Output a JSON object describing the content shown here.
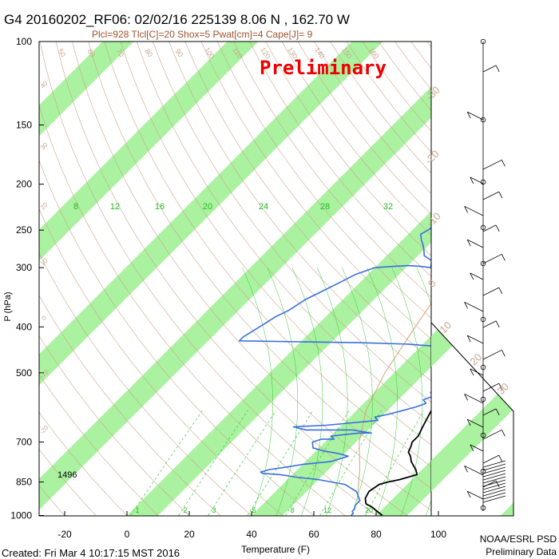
{
  "header": {
    "title": "G4 20160202_RF06: 02/02/16 225139   8.06 N , 162.70 W",
    "subtitle": "Plcl=928 Tlcl[C]=20 Shox=5 Pwat[cm]=4 Cape[J]= 9",
    "watermark": "Preliminary"
  },
  "footer": {
    "created": "Created: Fri Mar  4 10:17:15 MST 2016",
    "credit_line1": "NOAA/ESRL PSD",
    "credit_line2": "Preliminary Data"
  },
  "colors": {
    "band": "#aaf2a0",
    "temperature": "#000000",
    "dewpoint": "#3a6fdf",
    "dry_adiabat": "#c8a58c",
    "moist_adiabat": "#33cc33",
    "parcel": "#d6a27a",
    "watermark": "#ee0000",
    "subtitle": "#a0522d"
  },
  "chart_data": {
    "type": "line",
    "title": "G4 20160202_RF06: 02/02/16 225139   8.06 N , 162.70 W",
    "xlabel": "Temperature (F)",
    "ylabel": "P (hPa)",
    "x_ticks": [
      -20,
      0,
      20,
      40,
      60,
      80,
      100
    ],
    "y_ticks": [
      100,
      150,
      200,
      250,
      300,
      400,
      500,
      700,
      850,
      1000
    ],
    "xlim": [
      -28,
      122
    ],
    "ylim": [
      1050,
      100
    ],
    "y_scale": "log",
    "annotation": "1496",
    "mixing_ratio_labels_top": [
      "8",
      "12",
      "16",
      "20",
      "24",
      "28",
      "32"
    ],
    "mixing_ratio_labels_bottom": [
      "1",
      "2",
      "3",
      "5",
      "8",
      "12",
      "20"
    ],
    "dry_adiabat_labels": [
      "50",
      "60",
      "70",
      "80",
      "90",
      "100",
      "110",
      "120",
      "130",
      "140",
      "150",
      "160"
    ],
    "right_axis_labels": [
      "-30",
      "-20",
      "-10",
      "0",
      "10",
      "20",
      "30"
    ],
    "left_isotherm_labels": [
      "40",
      "30",
      "20",
      "10",
      "0",
      "-10",
      "-20"
    ],
    "series": [
      {
        "name": "Temperature",
        "points": [
          [
            82,
            1000
          ],
          [
            79,
            980
          ],
          [
            76,
            960
          ],
          [
            73,
            945
          ],
          [
            71,
            920
          ],
          [
            70,
            890
          ],
          [
            71,
            860
          ],
          [
            73,
            850
          ],
          [
            76,
            840
          ],
          [
            80,
            820
          ],
          [
            78,
            800
          ],
          [
            76,
            785
          ],
          [
            74,
            770
          ],
          [
            72,
            750
          ],
          [
            70,
            735
          ],
          [
            69,
            715
          ],
          [
            68,
            700
          ],
          [
            68,
            680
          ],
          [
            67,
            660
          ],
          [
            66,
            640
          ],
          [
            65,
            620
          ],
          [
            64,
            600
          ],
          [
            63,
            580
          ],
          [
            62,
            560
          ],
          [
            61,
            540
          ],
          [
            60,
            520
          ],
          [
            60,
            500
          ],
          [
            59,
            480
          ],
          [
            58,
            470
          ],
          [
            56,
            455
          ],
          [
            54,
            440
          ],
          [
            52,
            430
          ],
          [
            52,
            420
          ],
          [
            52,
            400
          ],
          [
            51,
            380
          ],
          [
            50,
            360
          ],
          [
            49,
            345
          ],
          [
            48,
            340
          ],
          [
            46,
            320
          ],
          [
            44,
            300
          ],
          [
            41,
            280
          ],
          [
            38,
            262
          ],
          [
            35,
            250
          ],
          [
            31,
            235
          ],
          [
            27,
            222
          ],
          [
            23,
            210
          ],
          [
            21,
            200
          ],
          [
            18,
            190
          ]
        ]
      },
      {
        "name": "Dewpoint",
        "points": [
          [
            72,
            1000
          ],
          [
            72,
            990
          ],
          [
            71,
            980
          ],
          [
            71,
            970
          ],
          [
            70,
            950
          ],
          [
            70,
            930
          ],
          [
            68,
            910
          ],
          [
            67,
            900
          ],
          [
            66,
            890
          ],
          [
            64,
            880
          ],
          [
            62,
            870
          ],
          [
            60,
            860
          ],
          [
            55,
            850
          ],
          [
            50,
            840
          ],
          [
            42,
            830
          ],
          [
            36,
            820
          ],
          [
            30,
            815
          ],
          [
            29,
            810
          ],
          [
            31,
            800
          ],
          [
            36,
            790
          ],
          [
            40,
            780
          ],
          [
            48,
            770
          ],
          [
            50,
            760
          ],
          [
            52,
            750
          ],
          [
            48,
            740
          ],
          [
            42,
            730
          ],
          [
            38,
            720
          ],
          [
            36,
            700
          ],
          [
            38,
            690
          ],
          [
            42,
            690
          ],
          [
            40,
            680
          ],
          [
            48,
            670
          ],
          [
            52,
            670
          ],
          [
            45,
            660
          ],
          [
            30,
            660
          ],
          [
            25,
            650
          ],
          [
            35,
            645
          ],
          [
            40,
            640
          ],
          [
            50,
            630
          ],
          [
            48,
            620
          ],
          [
            52,
            610
          ],
          [
            55,
            600
          ],
          [
            58,
            590
          ],
          [
            60,
            580
          ],
          [
            58,
            570
          ],
          [
            60,
            560
          ],
          [
            58,
            550
          ],
          [
            60,
            540
          ],
          [
            58,
            530
          ],
          [
            56,
            520
          ],
          [
            57,
            510
          ],
          [
            58,
            500
          ],
          [
            56,
            490
          ],
          [
            52,
            480
          ],
          [
            50,
            470
          ],
          [
            49,
            460
          ],
          [
            48,
            450
          ],
          [
            46,
            440
          ],
          [
            35,
            435
          ],
          [
            20,
            432
          ],
          [
            0,
            430
          ],
          [
            -20,
            428
          ],
          [
            -20,
            420
          ],
          [
            -18,
            400
          ],
          [
            -16,
            380
          ],
          [
            -14,
            370
          ],
          [
            -12,
            350
          ],
          [
            -10,
            340
          ],
          [
            -6,
            320
          ],
          [
            -4,
            310
          ],
          [
            -2,
            305
          ],
          [
            0,
            300
          ],
          [
            6,
            298
          ],
          [
            10,
            297
          ],
          [
            14,
            298
          ],
          [
            18,
            300
          ],
          [
            16,
            290
          ],
          [
            12,
            283
          ],
          [
            10,
            275
          ],
          [
            8,
            268
          ],
          [
            6,
            262
          ],
          [
            4,
            255
          ],
          [
            5,
            250
          ],
          [
            6,
            242
          ],
          [
            4,
            235
          ],
          [
            3,
            228
          ],
          [
            4,
            220
          ],
          [
            2,
            212
          ],
          [
            1,
            205
          ]
        ]
      },
      {
        "name": "Parcel",
        "points": [
          [
            69,
            928
          ],
          [
            60,
            800
          ],
          [
            51,
            700
          ],
          [
            43,
            600
          ],
          [
            37,
            500
          ],
          [
            32,
            400
          ],
          [
            28,
            330
          ],
          [
            26,
            280
          ],
          [
            25,
            250
          ],
          [
            24,
            220
          ]
        ]
      }
    ]
  }
}
